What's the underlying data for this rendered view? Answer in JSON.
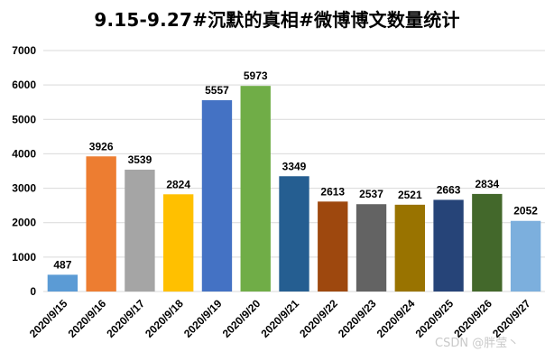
{
  "chart_data": {
    "type": "bar",
    "title": "9.15-9.27#沉默的真相#微博博文数量统计",
    "xlabel": "",
    "ylabel": "",
    "ylim": [
      0,
      7000
    ],
    "yticks": [
      0,
      1000,
      2000,
      3000,
      4000,
      5000,
      6000,
      7000
    ],
    "grid": true,
    "legend": "none",
    "categories": [
      "2020/9/15",
      "2020/9/16",
      "2020/9/17",
      "2020/9/18",
      "2020/9/19",
      "2020/9/20",
      "2020/9/21",
      "2020/9/22",
      "2020/9/23",
      "2020/9/24",
      "2020/9/25",
      "2020/9/26",
      "2020/9/27"
    ],
    "values": [
      487,
      3926,
      3539,
      2824,
      5557,
      5973,
      3349,
      2613,
      2537,
      2521,
      2663,
      2834,
      2052
    ],
    "colors": [
      "#5b9bd5",
      "#ed7d31",
      "#a5a5a5",
      "#ffc000",
      "#4472c4",
      "#70ad47",
      "#255e91",
      "#9e480e",
      "#636363",
      "#997300",
      "#264478",
      "#43682b",
      "#7cafdd"
    ]
  },
  "watermark": "CSDN @胖莹丶"
}
